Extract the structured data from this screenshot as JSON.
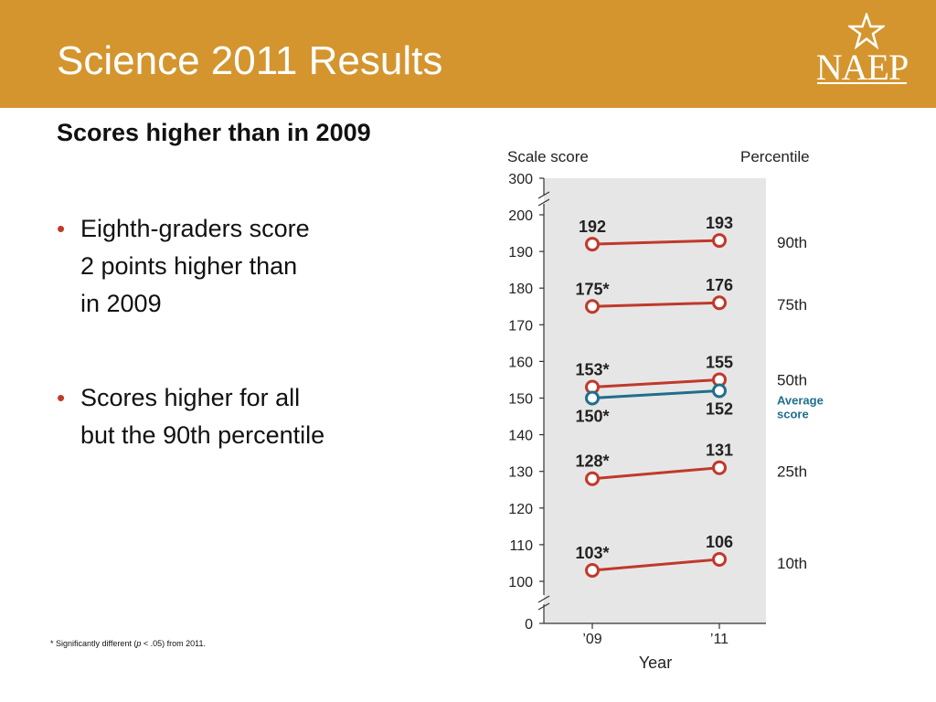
{
  "slide": {
    "title": "Science 2011 Results",
    "logo_text": "NAEP",
    "subtitle": "Scores higher than in 2009",
    "bullets": [
      {
        "lines": [
          "Eighth-graders score",
          "2 points higher than",
          "in 2009"
        ]
      },
      {
        "lines": [
          "Scores higher for all",
          "but the 90th percentile"
        ]
      }
    ],
    "footnote": {
      "prefix": "* Significantly different (",
      "italic": "p",
      "suffix": " < .05) from 2011."
    },
    "colors": {
      "header": "#d4952f",
      "percentile_line": "#c0392b",
      "average_line": "#1f6f8b",
      "plot_bg": "#e6e6e6"
    }
  },
  "chart_data": {
    "type": "line",
    "y_axis_title": "Scale score",
    "right_axis_title": "Percentile",
    "xlabel": "Year",
    "categories": [
      "’09",
      "’11"
    ],
    "yticks": [
      "300",
      "200",
      "190",
      "180",
      "170",
      "160",
      "150",
      "140",
      "130",
      "120",
      "110",
      "100",
      "0"
    ],
    "ylim": [
      100,
      200
    ],
    "axis_breaks": "0 and 300 shown beyond broken axis",
    "series": [
      {
        "name": "90th",
        "labels": [
          "192",
          "193"
        ],
        "values": [
          192,
          193
        ],
        "color": "#c0392b"
      },
      {
        "name": "75th",
        "labels": [
          "175*",
          "176"
        ],
        "values": [
          175,
          176
        ],
        "color": "#c0392b"
      },
      {
        "name": "50th",
        "labels": [
          "153*",
          "155"
        ],
        "values": [
          153,
          155
        ],
        "color": "#c0392b"
      },
      {
        "name": "Average score",
        "labels": [
          "150*",
          "152"
        ],
        "values": [
          150,
          152
        ],
        "color": "#1f6f8b"
      },
      {
        "name": "25th",
        "labels": [
          "128*",
          "131"
        ],
        "values": [
          128,
          131
        ],
        "color": "#c0392b"
      },
      {
        "name": "10th",
        "labels": [
          "103*",
          "106"
        ],
        "values": [
          103,
          106
        ],
        "color": "#c0392b"
      }
    ],
    "right_labels": [
      "90th",
      "75th",
      "50th",
      "Average",
      "score",
      "25th",
      "10th"
    ]
  }
}
